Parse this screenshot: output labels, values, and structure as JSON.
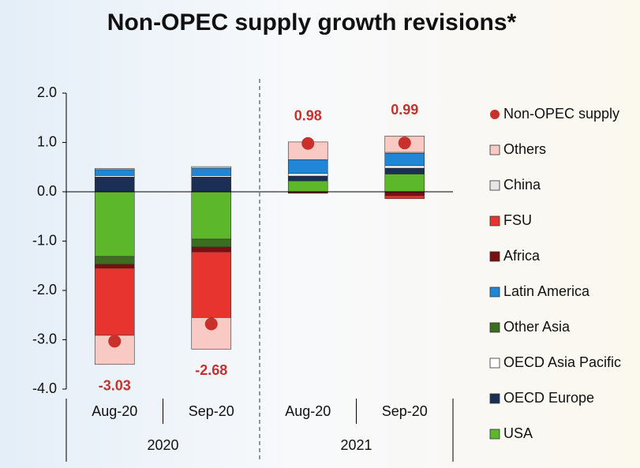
{
  "chart_data": {
    "type": "bar",
    "stacked": true,
    "title": "Non-OPEC supply growth revisions*",
    "categories": [
      "Aug-20",
      "Sep-20",
      "Aug-20",
      "Sep-20"
    ],
    "groups": [
      "2020",
      "2021"
    ],
    "ylim": [
      -4.0,
      2.0
    ],
    "yticks": [
      {
        "value": 2,
        "label": "2.0"
      },
      {
        "value": 1,
        "label": "1.0"
      },
      {
        "value": 0,
        "label": "0.0"
      },
      {
        "value": -1,
        "label": "-1.0"
      },
      {
        "value": -2,
        "label": "-2.0"
      },
      {
        "value": -3,
        "label": "-3.0"
      },
      {
        "value": -4,
        "label": "-4.0"
      }
    ],
    "series": [
      {
        "name": "USA",
        "color": "#5cb82a",
        "values": [
          -1.31,
          -0.96,
          0.22,
          0.36
        ]
      },
      {
        "name": "OECD Europe",
        "color": "#1b2f55",
        "values": [
          0.3,
          0.3,
          0.1,
          0.12
        ]
      },
      {
        "name": "OECD Asia Pacific",
        "color": "#ffffff",
        "values": [
          0.03,
          0.03,
          0.05,
          0.05
        ]
      },
      {
        "name": "Other Asia",
        "color": "#3c6e1f",
        "values": [
          -0.16,
          -0.16,
          0.0,
          0.0
        ]
      },
      {
        "name": "Latin America",
        "color": "#1f87d6",
        "values": [
          0.12,
          0.15,
          0.28,
          0.25
        ]
      },
      {
        "name": "Africa",
        "color": "#7a0f0f",
        "values": [
          -0.08,
          -0.1,
          -0.03,
          -0.08
        ]
      },
      {
        "name": "FSU",
        "color": "#e8342e",
        "values": [
          -1.36,
          -1.33,
          0.0,
          -0.06
        ]
      },
      {
        "name": "China",
        "color": "#e6e6e6",
        "values": [
          0.02,
          0.03,
          0.0,
          0.02
        ]
      },
      {
        "name": "Others",
        "color": "#f9c9c4",
        "values": [
          -0.59,
          -0.64,
          0.36,
          0.33
        ]
      },
      {
        "name": "Non-OPEC supply",
        "color": "#c9302c",
        "type": "scatter",
        "values": [
          -3.03,
          -2.68,
          0.98,
          0.99
        ]
      }
    ]
  }
}
